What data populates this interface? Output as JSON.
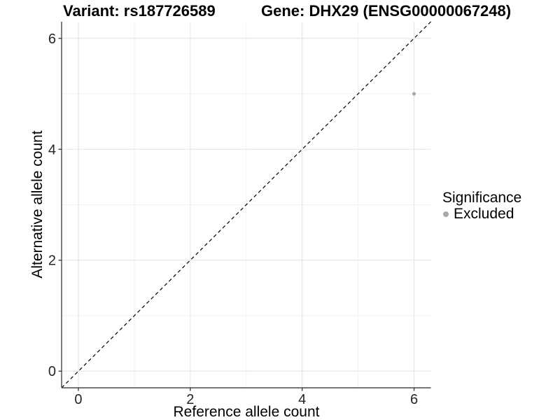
{
  "chart_data": {
    "type": "scatter",
    "titles": {
      "left": "Variant: rs187726589",
      "right": "Gene: DHX29 (ENSG00000067248)"
    },
    "xlabel": "Reference allele count",
    "ylabel": "Alternative allele count",
    "xlim": [
      -0.3,
      6.3
    ],
    "ylim": [
      -0.3,
      6.3
    ],
    "x_ticks": [
      0,
      2,
      4,
      6
    ],
    "y_ticks": [
      0,
      2,
      4,
      6
    ],
    "x_minor_ticks": [
      1,
      3,
      5
    ],
    "y_minor_ticks": [
      1,
      3,
      5
    ],
    "grid": "major+minor",
    "legend_position": "right",
    "legend": {
      "title": "Significance",
      "items": [
        {
          "label": "Excluded",
          "color": "#a9a9a9"
        }
      ]
    },
    "series": [
      {
        "name": "Excluded",
        "color": "#a9a9a9",
        "point_radius": 2.6,
        "points": [
          {
            "x": 6,
            "y": 5
          }
        ]
      }
    ],
    "reference_line": {
      "type": "identity",
      "slope": 1,
      "intercept": 0,
      "style": "dashed",
      "color": "#000000"
    }
  },
  "colors": {
    "background": "#ffffff",
    "grid_major": "#e4e4e4",
    "grid_minor": "#f1f1f1",
    "axis_line": "#4a4a4a",
    "tick_mark": "#333333",
    "tick_label": "#262626",
    "title_text": "#000000"
  }
}
